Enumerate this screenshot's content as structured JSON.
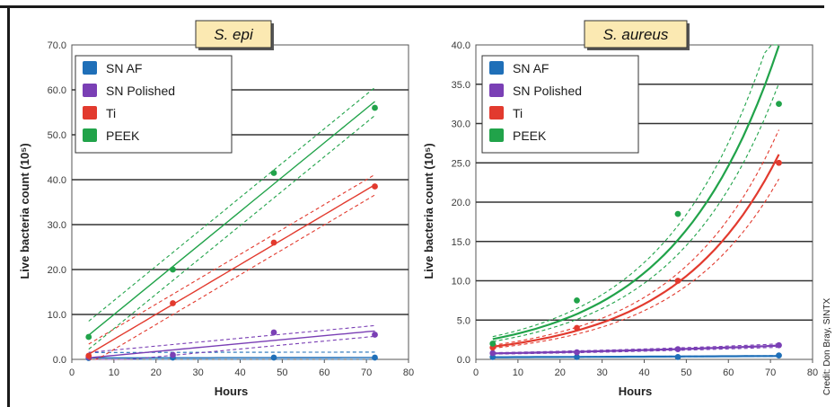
{
  "credit": "Credit: Don Bray, SINTX",
  "colors": {
    "SN AF": "#1f6fb8",
    "SN Polished": "#7a3fb5",
    "Ti": "#e23a2e",
    "PEEK": "#21a34a"
  },
  "chart_data": [
    {
      "type": "line",
      "title": "S. epi",
      "xlabel": "Hours",
      "ylabel": "Live bacteria count (10⁵)",
      "xlim": [
        0,
        80
      ],
      "ylim": [
        0,
        70
      ],
      "xticks": [
        "0",
        "10",
        "20",
        "30",
        "40",
        "50",
        "60",
        "70",
        "80"
      ],
      "yticks": [
        "0.0",
        "10.0",
        "20.0",
        "30.0",
        "40.0",
        "50.0",
        "60.0",
        "70.0"
      ],
      "grid": "horizontal",
      "legend": "top-left",
      "fit": "linear",
      "series": [
        {
          "name": "SN AF",
          "x": [
            4,
            24,
            48,
            72
          ],
          "y": [
            0.3,
            0.4,
            0.4,
            0.4
          ]
        },
        {
          "name": "SN Polished",
          "x": [
            4,
            24,
            48,
            72
          ],
          "y": [
            0.5,
            1.0,
            6.0,
            5.5
          ]
        },
        {
          "name": "Ti",
          "x": [
            4,
            24,
            48,
            72
          ],
          "y": [
            0.8,
            12.5,
            26.0,
            38.5
          ]
        },
        {
          "name": "PEEK",
          "x": [
            4,
            24,
            48,
            72
          ],
          "y": [
            5.0,
            20.0,
            41.5,
            56.0
          ]
        }
      ]
    },
    {
      "type": "line",
      "title": "S. aureus",
      "xlabel": "Hours",
      "ylabel": "Live bacteria count (10⁵)",
      "xlim": [
        0,
        80
      ],
      "ylim": [
        0,
        40
      ],
      "xticks": [
        "0",
        "10",
        "20",
        "30",
        "40",
        "50",
        "60",
        "70",
        "80"
      ],
      "yticks": [
        "0.0",
        "5.0",
        "10.0",
        "15.0",
        "20.0",
        "25.0",
        "30.0",
        "35.0",
        "40.0"
      ],
      "grid": "horizontal",
      "legend": "top-left",
      "fit": "exponential",
      "series": [
        {
          "name": "SN AF",
          "x": [
            4,
            24,
            48,
            72
          ],
          "y": [
            0.3,
            0.3,
            0.3,
            0.5
          ]
        },
        {
          "name": "SN Polished",
          "x": [
            4,
            24,
            48,
            72
          ],
          "y": [
            0.8,
            0.9,
            1.3,
            1.8
          ]
        },
        {
          "name": "Ti",
          "x": [
            4,
            24,
            48,
            72
          ],
          "y": [
            1.5,
            4.0,
            10.0,
            25.0
          ]
        },
        {
          "name": "PEEK",
          "x": [
            4,
            24,
            48,
            72
          ],
          "y": [
            2.0,
            7.5,
            18.5,
            32.5
          ]
        }
      ]
    }
  ]
}
